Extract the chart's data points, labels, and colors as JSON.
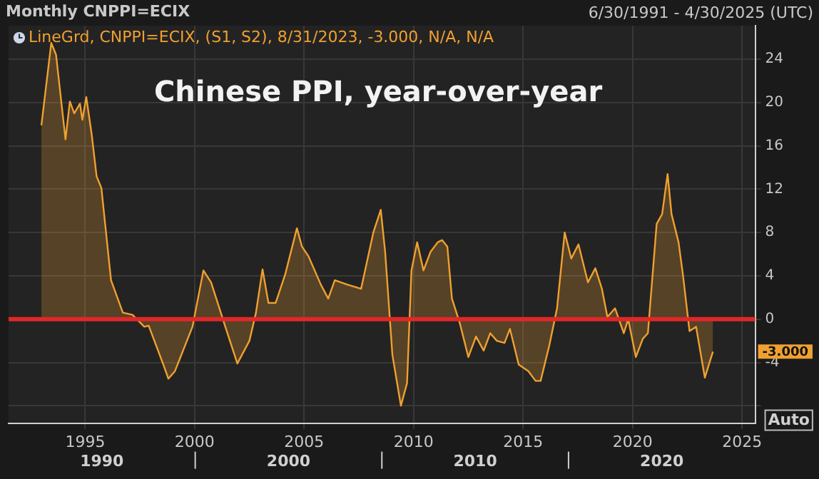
{
  "chart_data": {
    "type": "area",
    "title": "Chinese PPI, year-over-year",
    "subtitle": "Monthly CNPPI=ECIX",
    "annotations": [
      "6/30/1991 - 4/30/2025 (UTC)",
      "1990",
      "2000",
      "2010",
      "2020",
      "-3.000",
      "Auto"
    ],
    "series": [
      {
        "name": "LineGrd, CNPPI=ECIX, (S1, S2), 8/31/2023, -3.000, N/A, N/A",
        "color": "#f0a030",
        "x": [
          1993.0,
          1993.45,
          1993.67,
          1994.1,
          1994.3,
          1994.5,
          1994.76,
          1994.87,
          1995.05,
          1995.3,
          1995.52,
          1995.74,
          1996.18,
          1996.72,
          1997.16,
          1997.7,
          1997.9,
          1998.57,
          1998.8,
          1999.1,
          1999.9,
          2000.4,
          2000.75,
          2001.4,
          2001.95,
          2002.5,
          2002.8,
          2003.1,
          2003.37,
          2003.7,
          2004.13,
          2004.67,
          2004.9,
          2005.2,
          2005.76,
          2006.1,
          2006.4,
          2006.96,
          2007.6,
          2008.16,
          2008.5,
          2008.7,
          2009.03,
          2009.42,
          2009.7,
          2009.9,
          2010.16,
          2010.45,
          2010.77,
          2011.1,
          2011.3,
          2011.54,
          2011.75,
          2012.1,
          2012.5,
          2012.85,
          2013.2,
          2013.5,
          2013.8,
          2014.15,
          2014.4,
          2014.8,
          2015.24,
          2015.57,
          2015.8,
          2016.2,
          2016.55,
          2016.9,
          2017.2,
          2017.53,
          2017.96,
          2018.3,
          2018.6,
          2018.85,
          2019.2,
          2019.6,
          2019.8,
          2020.15,
          2020.47,
          2020.7,
          2021.1,
          2021.35,
          2021.6,
          2021.78,
          2022.1,
          2022.3,
          2022.6,
          2022.9,
          2023.3,
          2023.67
        ],
        "values": [
          17.9,
          25.5,
          24.4,
          16.6,
          20.1,
          19.0,
          19.9,
          18.4,
          20.5,
          17.0,
          13.2,
          12.1,
          3.6,
          0.6,
          0.4,
          -0.7,
          -0.6,
          -4.2,
          -5.5,
          -4.8,
          -0.7,
          4.5,
          3.4,
          -0.7,
          -4.1,
          -2.0,
          0.6,
          4.6,
          1.5,
          1.5,
          4.1,
          8.4,
          6.7,
          5.8,
          3.2,
          1.9,
          3.6,
          3.2,
          2.8,
          8.0,
          10.1,
          6.2,
          -3.3,
          -8.0,
          -5.9,
          4.5,
          7.1,
          4.5,
          6.2,
          7.1,
          7.3,
          6.7,
          1.9,
          -0.3,
          -3.5,
          -1.6,
          -2.9,
          -1.3,
          -2.0,
          -2.2,
          -0.9,
          -4.2,
          -4.8,
          -5.7,
          -5.7,
          -2.4,
          1.0,
          8.0,
          5.6,
          6.9,
          3.4,
          4.7,
          2.8,
          0.2,
          1.0,
          -1.3,
          0,
          -3.5,
          -1.8,
          -1.3,
          8.8,
          9.7,
          13.4,
          9.7,
          7.1,
          4.1,
          -1.1,
          -0.7,
          -5.4,
          -3.0
        ]
      }
    ],
    "xlim": [
      1991.5,
      2025.6
    ],
    "xticks": [
      1995,
      2000,
      2005,
      2010,
      2015,
      2020,
      2025
    ],
    "ylim": [
      -9.6,
      27.1
    ],
    "yticks": [
      {
        "value": -8,
        "label": null
      },
      -4,
      0,
      4,
      8,
      12,
      16,
      20,
      24
    ],
    "ref_lines": [
      {
        "axis": "y",
        "value": 0,
        "color": "#e02828"
      }
    ],
    "grid": true,
    "legend": "top left"
  }
}
